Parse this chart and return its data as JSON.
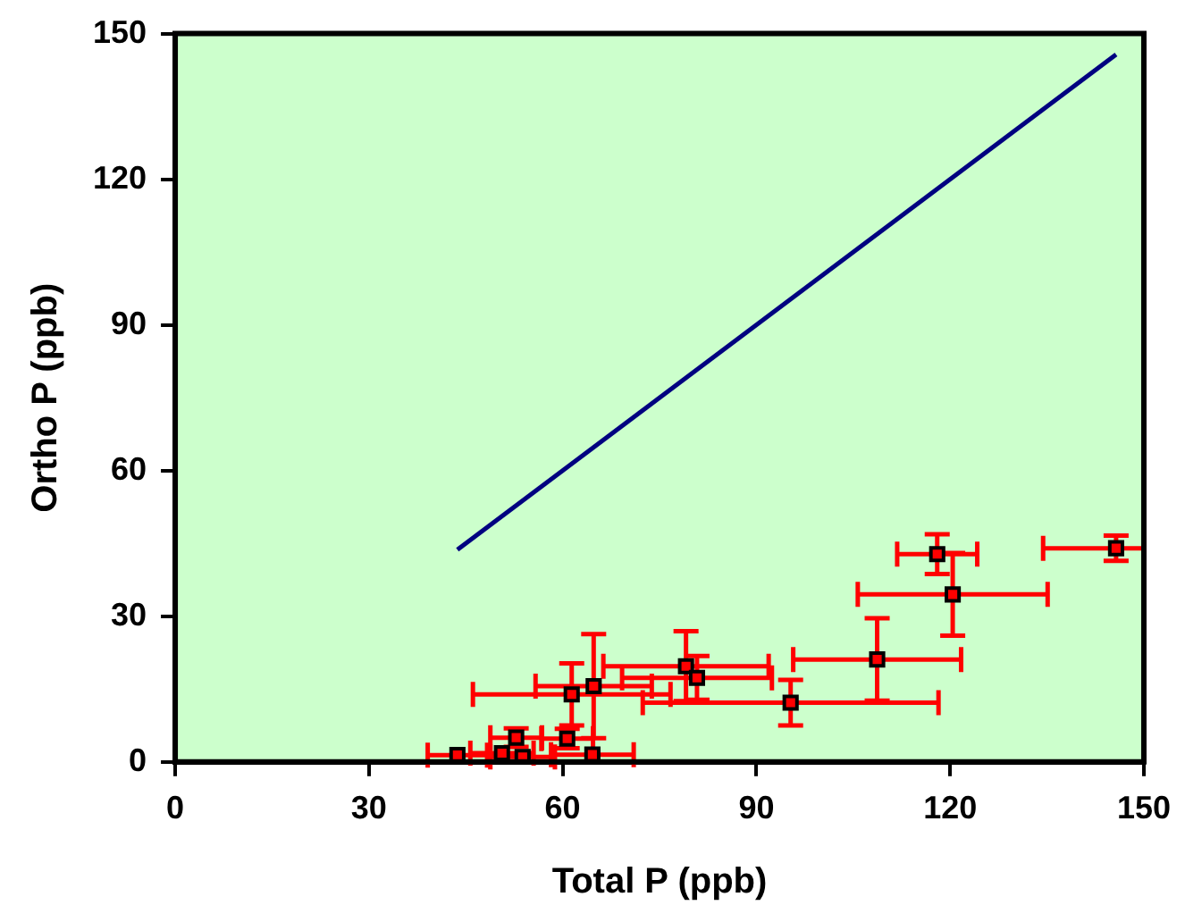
{
  "chart_data": {
    "type": "scatter",
    "xlabel": "Total P (ppb)",
    "ylabel": "Ortho P (ppb)",
    "xlim": [
      0,
      150
    ],
    "ylim": [
      0,
      150
    ],
    "xticks": [
      0,
      30,
      60,
      90,
      120,
      150
    ],
    "yticks": [
      0,
      30,
      60,
      90,
      120,
      150
    ],
    "grid": false,
    "legend": false,
    "marker": "square",
    "series": [
      {
        "color": "#ff0000",
        "x": [
          43.7,
          50.6,
          52.8,
          53.8,
          60.7,
          64.6,
          61.4,
          64.8,
          79.1,
          80.8,
          95.3,
          108.7,
          118.0,
          120.4,
          145.7
        ],
        "values": [
          1.4,
          1.8,
          5.0,
          1.0,
          4.8,
          1.5,
          13.9,
          15.6,
          19.7,
          17.3,
          12.2,
          21.1,
          42.8,
          34.5,
          44.0
        ],
        "errors": [
          null,
          null,
          1.9,
          null,
          2,
          null,
          6.4,
          10.7,
          7.2,
          4.5,
          4.7,
          8.5,
          4.1,
          8.5,
          2.6
        ],
        "xerrors": [
          4.6,
          4.9,
          4,
          5,
          4,
          6.4,
          15.3,
          9,
          12.8,
          11.6,
          22.9,
          13,
          6.2,
          14.7,
          [
            134.4,
            150
          ]
        ]
      },
      {
        "type": "line",
        "color": "#000080",
        "marker": "none",
        "x": [
          43.7,
          145.7
        ],
        "values": [
          43.7,
          145.7
        ]
      }
    ]
  }
}
